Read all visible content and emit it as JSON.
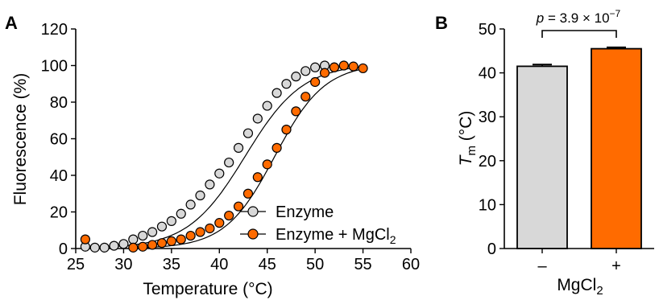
{
  "colors": {
    "enzyme": "#d8d8d8",
    "enzyme_mgcl2": "#ff6b00",
    "stroke": "#000000"
  },
  "panel_a": {
    "letter": "A",
    "legend": [
      {
        "label": "Enzyme"
      },
      {
        "label": "Enzyme + MgCl",
        "sub": "2"
      }
    ]
  },
  "panel_b": {
    "letter": "B",
    "pvalue": {
      "prefix": "p",
      "eq": " = 3.9 × 10",
      "exp": "−7"
    },
    "ylabel_main": "T",
    "ylabel_sub": "m",
    "ylabel_unit": " (°C)",
    "xlabel_main": "MgCl",
    "xlabel_sub": "2"
  },
  "chart_data": [
    {
      "type": "scatter",
      "xlabel": "Temperature (°C)",
      "ylabel": "Fluorescence (%)",
      "xlim": [
        25,
        60
      ],
      "ylim": [
        0,
        120
      ],
      "xticks": [
        25,
        30,
        35,
        40,
        45,
        50,
        55,
        60
      ],
      "yticks": [
        0,
        20,
        40,
        60,
        80,
        100,
        120
      ],
      "series": [
        {
          "name": "Enzyme",
          "color": "#d8d8d8",
          "x": [
            26,
            27,
            28,
            29,
            30,
            31,
            32,
            33,
            34,
            35,
            36,
            37,
            38,
            39,
            40,
            41,
            42,
            43,
            44,
            45,
            46,
            47,
            48,
            49,
            50,
            51,
            52
          ],
          "y": [
            1,
            0.5,
            0.5,
            1.5,
            2.5,
            5,
            7,
            9,
            12,
            15,
            19,
            24,
            29,
            35,
            41,
            47,
            55,
            63,
            71,
            78,
            85,
            90,
            94,
            97,
            99,
            100,
            99
          ]
        },
        {
          "name": "Enzyme + MgCl2",
          "color": "#ff6b00",
          "x": [
            26,
            31,
            32,
            33,
            34,
            35,
            36,
            37,
            38,
            39,
            40,
            41,
            42,
            43,
            44,
            45,
            46,
            47,
            48,
            49,
            50,
            51,
            52,
            53,
            54,
            55
          ],
          "y": [
            5,
            0.5,
            1,
            2,
            3,
            4,
            5,
            7,
            9,
            11,
            14,
            18,
            23,
            30,
            39,
            46,
            55,
            65,
            75,
            83,
            91,
            96,
            99,
            100,
            99.5,
            98.5
          ]
        }
      ]
    },
    {
      "type": "bar",
      "categories": [
        "–",
        "+"
      ],
      "values": [
        41.5,
        45.5
      ],
      "errors": [
        0.4,
        0.3
      ],
      "colors": [
        "#d8d8d8",
        "#ff6b00"
      ],
      "ylim": [
        0,
        50
      ],
      "yticks": [
        0,
        10,
        20,
        30,
        40,
        50
      ]
    }
  ]
}
